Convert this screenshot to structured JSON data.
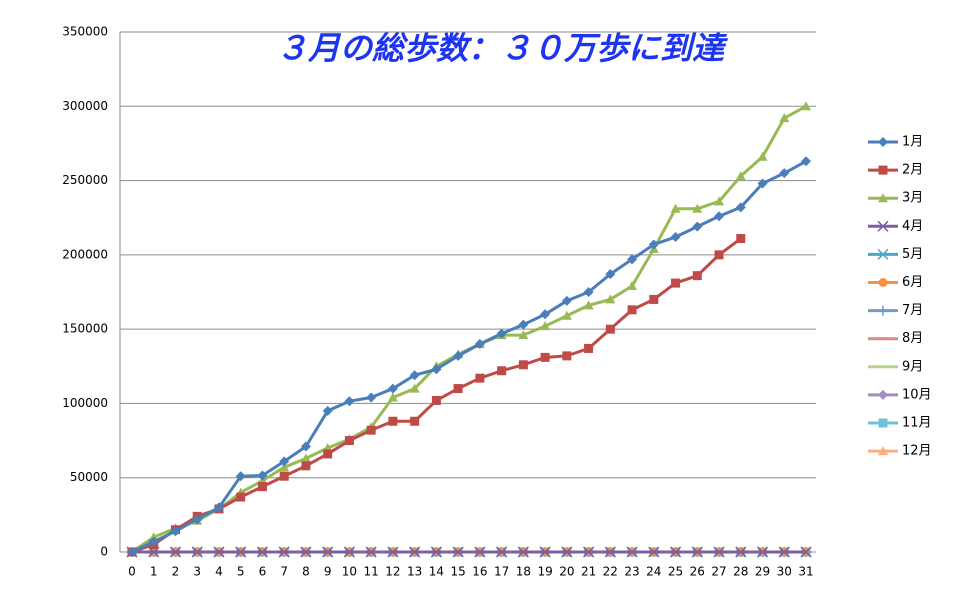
{
  "chart_data": {
    "type": "line",
    "title": "３月の総歩数：３０万歩に到達",
    "categories": [
      0,
      1,
      2,
      3,
      4,
      5,
      6,
      7,
      8,
      9,
      10,
      11,
      12,
      13,
      14,
      15,
      16,
      17,
      18,
      19,
      20,
      21,
      22,
      23,
      24,
      25,
      26,
      27,
      28,
      29,
      30,
      31
    ],
    "ylim": [
      0,
      350000
    ],
    "yticks": [
      0,
      50000,
      100000,
      150000,
      200000,
      250000,
      300000,
      350000
    ],
    "grid": true,
    "legend": "right",
    "series": [
      {
        "name": "1月",
        "color": "#4a7ebb",
        "marker": "diamond",
        "values": [
          0,
          7000,
          14000,
          22000,
          30000,
          51000,
          51500,
          61000,
          71000,
          95000,
          101500,
          104000,
          110000,
          119000,
          123000,
          132000,
          140000,
          147000,
          153000,
          160000,
          169000,
          175000,
          187000,
          197000,
          207000,
          212000,
          219000,
          226000,
          232000,
          248000,
          255000,
          263000
        ]
      },
      {
        "name": "2月",
        "color": "#be4b48",
        "marker": "square",
        "values": [
          0,
          5000,
          15000,
          24000,
          29000,
          37000,
          44000,
          51000,
          58000,
          66000,
          75000,
          82000,
          88000,
          88000,
          102000,
          110000,
          117000,
          122000,
          126000,
          131000,
          132000,
          137000,
          150000,
          163000,
          170000,
          181000,
          186000,
          200000,
          211000,
          null,
          null,
          null
        ]
      },
      {
        "name": "3月",
        "color": "#98b954",
        "marker": "triangle",
        "values": [
          0,
          10000,
          16000,
          21000,
          29000,
          40000,
          48000,
          57000,
          63000,
          70000,
          76000,
          84000,
          104000,
          110000,
          125000,
          133000,
          140000,
          146000,
          146000,
          152000,
          159000,
          166000,
          170000,
          179000,
          204000,
          231000,
          231000,
          236000,
          253000,
          266000,
          292000,
          300000
        ]
      },
      {
        "name": "4月",
        "color": "#7d60a0",
        "marker": "x",
        "values": [
          0,
          0,
          0,
          0,
          0,
          0,
          0,
          0,
          0,
          0,
          0,
          0,
          0,
          0,
          0,
          0,
          0,
          0,
          0,
          0,
          0,
          0,
          0,
          0,
          0,
          0,
          0,
          0,
          0,
          0,
          0,
          0
        ]
      },
      {
        "name": "5月",
        "color": "#46aac5",
        "marker": "star",
        "values": [
          0,
          0,
          0,
          0,
          0,
          0,
          0,
          0,
          0,
          0,
          0,
          0,
          0,
          0,
          0,
          0,
          0,
          0,
          0,
          0,
          0,
          0,
          0,
          0,
          0,
          0,
          0,
          0,
          0,
          0,
          0,
          0
        ]
      },
      {
        "name": "6月",
        "color": "#f69240",
        "marker": "circle",
        "values": [
          0,
          0,
          0,
          0,
          0,
          0,
          0,
          0,
          0,
          0,
          0,
          0,
          0,
          0,
          0,
          0,
          0,
          0,
          0,
          0,
          0,
          0,
          0,
          0,
          0,
          0,
          0,
          0,
          0,
          0,
          0,
          0
        ]
      },
      {
        "name": "7月",
        "color": "#729aca",
        "marker": "plus",
        "values": [
          0,
          0,
          0,
          0,
          0,
          0,
          0,
          0,
          0,
          0,
          0,
          0,
          0,
          0,
          0,
          0,
          0,
          0,
          0,
          0,
          0,
          0,
          0,
          0,
          0,
          0,
          0,
          0,
          0,
          0,
          0,
          0
        ]
      },
      {
        "name": "8月",
        "color": "#dc8a88",
        "marker": "dash",
        "values": [
          0,
          0,
          0,
          0,
          0,
          0,
          0,
          0,
          0,
          0,
          0,
          0,
          0,
          0,
          0,
          0,
          0,
          0,
          0,
          0,
          0,
          0,
          0,
          0,
          0,
          0,
          0,
          0,
          0,
          0,
          0,
          0
        ]
      },
      {
        "name": "9月",
        "color": "#b6d38d",
        "marker": "none",
        "values": [
          0,
          0,
          0,
          0,
          0,
          0,
          0,
          0,
          0,
          0,
          0,
          0,
          0,
          0,
          0,
          0,
          0,
          0,
          0,
          0,
          0,
          0,
          0,
          0,
          0,
          0,
          0,
          0,
          0,
          0,
          0,
          0
        ]
      },
      {
        "name": "10月",
        "color": "#a28dc0",
        "marker": "diamond",
        "values": [
          0,
          0,
          0,
          0,
          0,
          0,
          0,
          0,
          0,
          0,
          0,
          0,
          0,
          0,
          0,
          0,
          0,
          0,
          0,
          0,
          0,
          0,
          0,
          0,
          0,
          0,
          0,
          0,
          0,
          0,
          0,
          0
        ]
      },
      {
        "name": "11月",
        "color": "#6fc0d8",
        "marker": "square",
        "values": [
          0,
          0,
          0,
          0,
          0,
          0,
          0,
          0,
          0,
          0,
          0,
          0,
          0,
          0,
          0,
          0,
          0,
          0,
          0,
          0,
          0,
          0,
          0,
          0,
          0,
          0,
          0,
          0,
          0,
          0,
          0,
          0
        ]
      },
      {
        "name": "12月",
        "color": "#f9b07f",
        "marker": "triangle",
        "values": [
          0,
          0,
          0,
          0,
          0,
          0,
          0,
          0,
          0,
          0,
          0,
          0,
          0,
          0,
          0,
          0,
          0,
          0,
          0,
          0,
          0,
          0,
          0,
          0,
          0,
          0,
          0,
          0,
          0,
          0,
          0,
          0
        ]
      }
    ]
  }
}
